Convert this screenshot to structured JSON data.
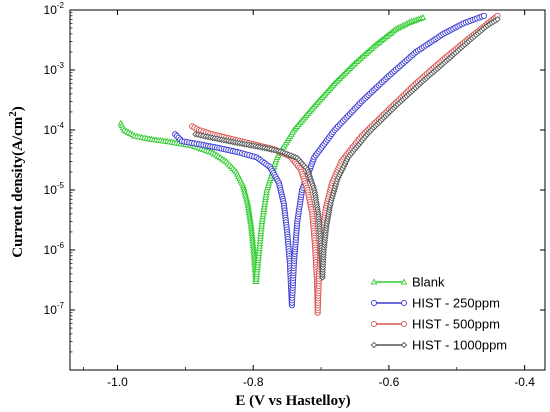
{
  "chart_data": {
    "type": "line",
    "xlabel": "E (V vs Hastelloy)",
    "ylabel": "Current density(A/cm²)",
    "xlim": [
      -1.07,
      -0.37
    ],
    "ylim": [
      1e-08,
      0.01
    ],
    "yscale": "log",
    "x_ticks": [
      "-1.0",
      "-0.8",
      "-0.6",
      "-0.4"
    ],
    "x_tick_values": [
      -1.0,
      -0.8,
      -0.6,
      -0.4
    ],
    "y_ticks": [
      {
        "base": "10",
        "exp": "-7",
        "value": 1e-07
      },
      {
        "base": "10",
        "exp": "-6",
        "value": 1e-06
      },
      {
        "base": "10",
        "exp": "-5",
        "value": 1e-05
      },
      {
        "base": "10",
        "exp": "-4",
        "value": 0.0001
      },
      {
        "base": "10",
        "exp": "-3",
        "value": 0.001
      },
      {
        "base": "10",
        "exp": "-2",
        "value": 0.01
      }
    ],
    "legend_position": "bottom-right",
    "series": [
      {
        "name": "Blank",
        "color": "#2ecc2e",
        "marker": "triangle",
        "ecorr": -0.795,
        "cathodic": [
          [
            -0.995,
            0.00013
          ],
          [
            -0.99,
            0.0001
          ],
          [
            -0.975,
            8e-05
          ],
          [
            -0.95,
            7e-05
          ],
          [
            -0.92,
            6.3e-05
          ],
          [
            -0.89,
            5.5e-05
          ],
          [
            -0.86,
            4.2e-05
          ],
          [
            -0.84,
            3e-05
          ],
          [
            -0.825,
            2e-05
          ],
          [
            -0.815,
            1.2e-05
          ],
          [
            -0.808,
            6e-06
          ],
          [
            -0.803,
            2.5e-06
          ],
          [
            -0.799,
            9e-07
          ],
          [
            -0.796,
            3e-07
          ]
        ],
        "anodic": [
          [
            -0.796,
            3e-07
          ],
          [
            -0.792,
            8e-07
          ],
          [
            -0.787,
            3e-06
          ],
          [
            -0.78,
            1e-05
          ],
          [
            -0.765,
            3.5e-05
          ],
          [
            -0.74,
            0.0001
          ],
          [
            -0.71,
            0.00025
          ],
          [
            -0.68,
            0.0006
          ],
          [
            -0.65,
            0.0013
          ],
          [
            -0.62,
            0.0026
          ],
          [
            -0.59,
            0.0048
          ],
          [
            -0.57,
            0.0062
          ],
          [
            -0.55,
            0.0075
          ]
        ]
      },
      {
        "name": "HIST - 250ppm",
        "color": "#3b3bd4",
        "marker": "circle",
        "ecorr": -0.742,
        "cathodic": [
          [
            -0.915,
            8.5e-05
          ],
          [
            -0.905,
            6.5e-05
          ],
          [
            -0.88,
            5.8e-05
          ],
          [
            -0.85,
            5e-05
          ],
          [
            -0.82,
            4.2e-05
          ],
          [
            -0.795,
            3.5e-05
          ],
          [
            -0.775,
            2.4e-05
          ],
          [
            -0.762,
            1.3e-05
          ],
          [
            -0.755,
            6e-06
          ],
          [
            -0.75,
            2e-06
          ],
          [
            -0.746,
            6e-07
          ],
          [
            -0.743,
            1.2e-07
          ]
        ],
        "anodic": [
          [
            -0.743,
            1.2e-07
          ],
          [
            -0.74,
            6e-07
          ],
          [
            -0.735,
            3e-06
          ],
          [
            -0.728,
            1e-05
          ],
          [
            -0.71,
            3.5e-05
          ],
          [
            -0.68,
            0.0001
          ],
          [
            -0.64,
            0.0003
          ],
          [
            -0.6,
            0.0008
          ],
          [
            -0.56,
            0.002
          ],
          [
            -0.52,
            0.004
          ],
          [
            -0.49,
            0.006
          ],
          [
            -0.46,
            0.008
          ]
        ]
      },
      {
        "name": "HIST - 500ppm",
        "color": "#d9534f",
        "marker": "circle",
        "ecorr": -0.705,
        "cathodic": [
          [
            -0.89,
            0.000115
          ],
          [
            -0.88,
            0.0001
          ],
          [
            -0.86,
            8.5e-05
          ],
          [
            -0.83,
            7e-05
          ],
          [
            -0.8,
            5.8e-05
          ],
          [
            -0.77,
            4.8e-05
          ],
          [
            -0.745,
            3.6e-05
          ],
          [
            -0.73,
            2.2e-05
          ],
          [
            -0.72,
            1e-05
          ],
          [
            -0.713,
            4e-06
          ],
          [
            -0.709,
            1.2e-06
          ],
          [
            -0.706,
            3e-07
          ],
          [
            -0.705,
            9e-08
          ]
        ],
        "anodic": [
          [
            -0.705,
            9e-08
          ],
          [
            -0.703,
            4e-07
          ],
          [
            -0.699,
            1.5e-06
          ],
          [
            -0.693,
            5e-06
          ],
          [
            -0.684,
            1.3e-05
          ],
          [
            -0.67,
            3e-05
          ],
          [
            -0.64,
            8e-05
          ],
          [
            -0.6,
            0.00022
          ],
          [
            -0.56,
            0.0006
          ],
          [
            -0.52,
            0.0015
          ],
          [
            -0.48,
            0.0035
          ],
          [
            -0.45,
            0.0065
          ],
          [
            -0.44,
            0.008
          ]
        ]
      },
      {
        "name": "HIST - 1000ppm",
        "color": "#555555",
        "marker": "diamond",
        "ecorr": -0.697,
        "cathodic": [
          [
            -0.885,
            8.5e-05
          ],
          [
            -0.87,
            7.8e-05
          ],
          [
            -0.85,
            7e-05
          ],
          [
            -0.82,
            6e-05
          ],
          [
            -0.79,
            5.2e-05
          ],
          [
            -0.76,
            4.4e-05
          ],
          [
            -0.735,
            3.4e-05
          ],
          [
            -0.72,
            2.2e-05
          ],
          [
            -0.71,
            1e-05
          ],
          [
            -0.704,
            4e-06
          ],
          [
            -0.7,
            1.2e-06
          ],
          [
            -0.698,
            3.5e-07
          ]
        ],
        "anodic": [
          [
            -0.698,
            3.5e-07
          ],
          [
            -0.696,
            1e-06
          ],
          [
            -0.692,
            2.5e-06
          ],
          [
            -0.686,
            6e-06
          ],
          [
            -0.676,
            1.5e-05
          ],
          [
            -0.66,
            3.5e-05
          ],
          [
            -0.63,
            9e-05
          ],
          [
            -0.59,
            0.00025
          ],
          [
            -0.55,
            0.00065
          ],
          [
            -0.51,
            0.0016
          ],
          [
            -0.48,
            0.0032
          ],
          [
            -0.455,
            0.0055
          ],
          [
            -0.44,
            0.007
          ]
        ]
      }
    ]
  }
}
